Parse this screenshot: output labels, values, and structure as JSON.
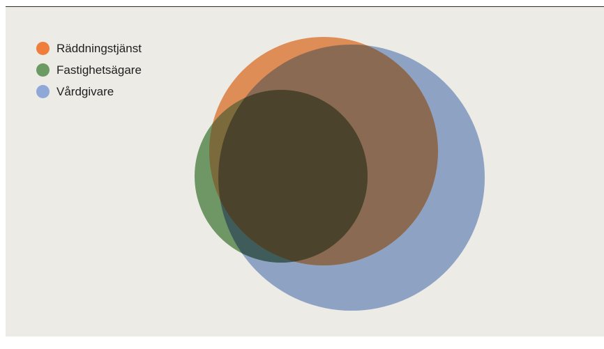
{
  "legend": [
    {
      "label": "Räddningstjänst",
      "color": "#ef7d3c"
    },
    {
      "label": "Fastighetsägare",
      "color": "#6b9a62"
    },
    {
      "label": "Vårdgivare",
      "color": "#8fa8d8"
    }
  ],
  "sets": [
    {
      "name": "Räddningstjänst",
      "relative_size": 0.69,
      "color": "#de8d57"
    },
    {
      "name": "Fastighetsägare",
      "relative_size": 0.38,
      "color": "#6f9665"
    },
    {
      "name": "Vårdgivare",
      "relative_size": 1.0,
      "color": "#8ea3c4"
    }
  ],
  "overlaps": [
    {
      "sets": [
        "Räddningstjänst",
        "Vårdgivare"
      ],
      "color": "#8a6a52"
    },
    {
      "sets": [
        "Fastighetsägare",
        "Vårdgivare"
      ],
      "color": "#3f5c5a"
    },
    {
      "sets": [
        "Räddningstjänst",
        "Fastighetsägare"
      ],
      "color": "#7a6a3c"
    },
    {
      "sets": [
        "Räddningstjänst",
        "Fastighetsägare",
        "Vårdgivare"
      ],
      "color": "#4b432c"
    }
  ]
}
